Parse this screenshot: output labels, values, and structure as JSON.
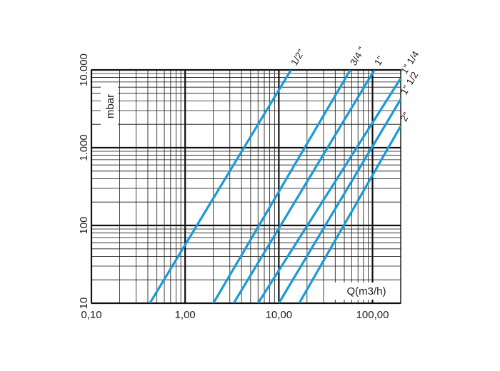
{
  "chart_data": {
    "type": "line",
    "title": "",
    "x_scale": "log",
    "y_scale": "log",
    "xlim": [
      0.1,
      200
    ],
    "ylim": [
      10,
      10000
    ],
    "x_tick_values": [
      0.1,
      1,
      10,
      100
    ],
    "x_tick_labels": [
      "0,10",
      "1,00",
      "10,00",
      "100,00"
    ],
    "y_tick_values": [
      10,
      100,
      1000,
      10000
    ],
    "y_tick_labels": [
      "10",
      "100",
      "1.000",
      "10.000"
    ],
    "xlabel": "Q(m3/h)",
    "ylabel": "mbar",
    "grid": true,
    "line_color": "#1a9ad6",
    "series": [
      {
        "name": "1/2\"",
        "points": [
          [
            0.42,
            10
          ],
          [
            13.5,
            10000
          ]
        ]
      },
      {
        "name": "3/4 \"",
        "points": [
          [
            2.0,
            10
          ],
          [
            58,
            10000
          ]
        ]
      },
      {
        "name": "1\"",
        "points": [
          [
            3.3,
            10
          ],
          [
            105,
            10000
          ]
        ]
      },
      {
        "name": "1\" 1/4",
        "points": [
          [
            6.0,
            10
          ],
          [
            200,
            7800
          ]
        ]
      },
      {
        "name": "1\" 1/2",
        "points": [
          [
            10.0,
            10
          ],
          [
            200,
            4200
          ]
        ]
      },
      {
        "name": "2\"",
        "points": [
          [
            16.5,
            10
          ],
          [
            200,
            1900
          ]
        ]
      }
    ]
  }
}
